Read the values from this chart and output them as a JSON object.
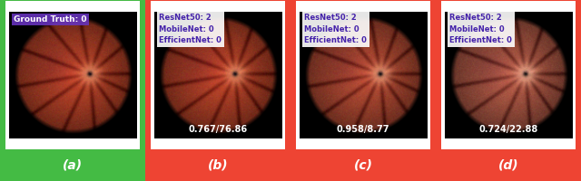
{
  "panels": [
    {
      "label": "(a)",
      "bg_color": "#44bb44",
      "top_text": "Ground Truth: 0",
      "top_text_bg": "#6633bb",
      "top_text_color": "white",
      "bottom_text": null,
      "bottom_text_color": "white",
      "brightness": 1.0,
      "saturation": 1.0
    },
    {
      "label": "(b)",
      "bg_color": "#ee4433",
      "top_text": "ResNet50: 2\nMobileNet: 0\nEfficientNet: 0",
      "top_text_bg": "white",
      "top_text_color": "#4422aa",
      "bottom_text": "0.767/76.86",
      "bottom_text_color": "white",
      "brightness": 1.0,
      "saturation": 1.0
    },
    {
      "label": "(c)",
      "bg_color": "#ee4433",
      "top_text": "ResNet50: 2\nMobileNet: 0\nEfficientNet: 0",
      "top_text_bg": "white",
      "top_text_color": "#4422aa",
      "bottom_text": "0.958/8.77",
      "bottom_text_color": "white",
      "brightness": 1.05,
      "saturation": 0.85
    },
    {
      "label": "(d)",
      "bg_color": "#ee4433",
      "top_text": "ResNet50: 2\nMobileNet: 0\nEfficientNet: 0",
      "top_text_bg": "white",
      "top_text_color": "#4422aa",
      "bottom_text": "0.724/22.88",
      "bottom_text_color": "white",
      "brightness": 1.15,
      "saturation": 0.65
    }
  ],
  "fig_width": 6.4,
  "fig_height": 2.0,
  "dpi": 100
}
